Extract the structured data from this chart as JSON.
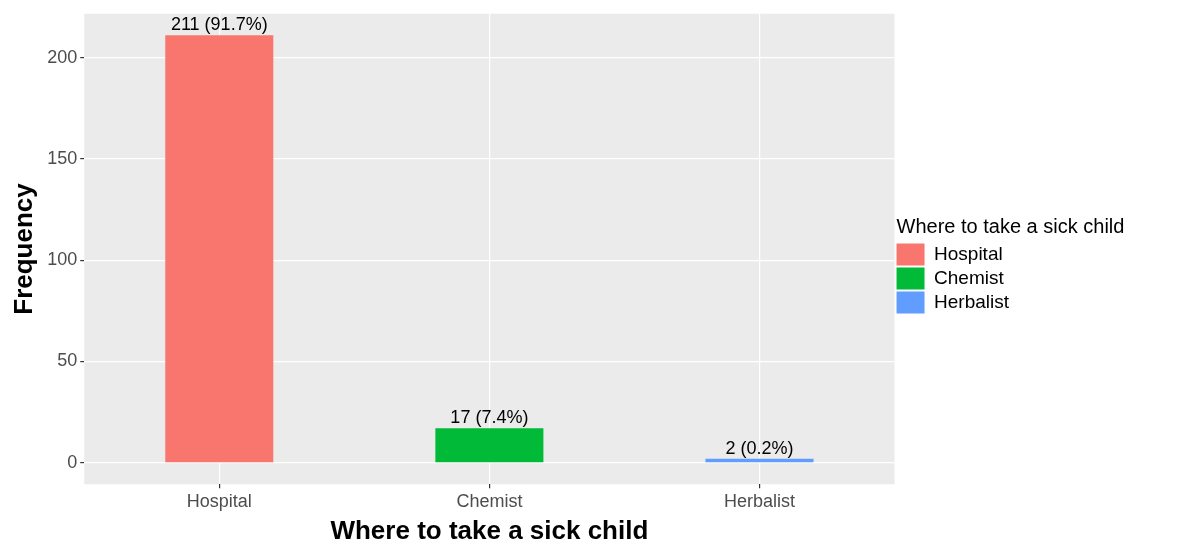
{
  "chart_data": {
    "type": "bar",
    "xlabel": "Where to take a sick child",
    "ylabel": "Frequency",
    "legend_title": "Where to take a sick child",
    "categories": [
      "Hospital",
      "Chemist",
      "Herbalist"
    ],
    "series": [
      {
        "name": "Hospital",
        "color": "#f8766d",
        "values": [
          211,
          null,
          null
        ],
        "value_labels": [
          "211 (91.7%)",
          null,
          null
        ]
      },
      {
        "name": "Chemist",
        "color": "#00ba38",
        "values": [
          null,
          17,
          null
        ],
        "value_labels": [
          null,
          "17 (7.4%)",
          null
        ]
      },
      {
        "name": "Herbalist",
        "color": "#619cff",
        "values": [
          null,
          null,
          2
        ],
        "value_labels": [
          null,
          null,
          "2 (0.2%)"
        ]
      }
    ],
    "ylim": [
      -10.6,
      221.6
    ],
    "yticks": [
      0,
      50,
      100,
      150,
      200
    ],
    "grid": true,
    "legend": "right"
  }
}
